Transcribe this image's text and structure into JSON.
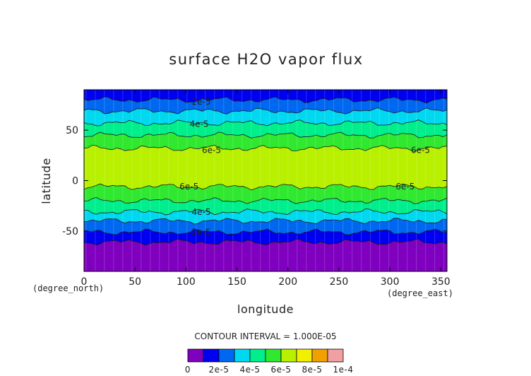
{
  "chart_data": {
    "type": "heatmap",
    "title": "surface H2O vapor flux",
    "xlabel": "longitude",
    "ylabel": "latitude",
    "x_unit": "(degree_east)",
    "y_unit": "(degree_north)",
    "xlim": [
      0,
      356
    ],
    "ylim": [
      -90,
      90
    ],
    "x_ticks": [
      0,
      50,
      100,
      150,
      200,
      250,
      300,
      350
    ],
    "y_ticks": [
      -50,
      0,
      50
    ],
    "contour_interval_text": "CONTOUR INTERVAL = 1.000E-05",
    "levels": [
      0,
      1e-05,
      2e-05,
      3e-05,
      4e-05,
      5e-05,
      6e-05,
      7e-05,
      8e-05,
      9e-05,
      0.0001
    ],
    "level_colors": [
      "#7f00bf",
      "#0000f0",
      "#0068f0",
      "#00d8f0",
      "#00ee8c",
      "#30e830",
      "#b8f000",
      "#f0f000",
      "#f0a000",
      "#f00000",
      "#f0a0a0"
    ],
    "colorbar_labels": [
      "0",
      "2e-5",
      "4e-5",
      "6e-5",
      "8e-5",
      "1e-4"
    ],
    "zonal_bands": [
      {
        "lat_from": -90,
        "lat_to": -61,
        "level_index": 0
      },
      {
        "lat_from": -61,
        "lat_to": -51,
        "level_index": 1
      },
      {
        "lat_from": -51,
        "lat_to": -40,
        "level_index": 2
      },
      {
        "lat_from": -40,
        "lat_to": -31,
        "level_index": 3
      },
      {
        "lat_from": -31,
        "lat_to": -20,
        "level_index": 4
      },
      {
        "lat_from": -20,
        "lat_to": -6,
        "level_index": 5
      },
      {
        "lat_from": -6,
        "lat_to": 32,
        "level_index": 6
      },
      {
        "lat_from": 32,
        "lat_to": 45,
        "level_index": 5
      },
      {
        "lat_from": 45,
        "lat_to": 57,
        "level_index": 4
      },
      {
        "lat_from": 57,
        "lat_to": 69,
        "level_index": 3
      },
      {
        "lat_from": 69,
        "lat_to": 80,
        "level_index": 2
      },
      {
        "lat_from": 80,
        "lat_to": 90,
        "level_index": 1
      }
    ],
    "contour_labels": [
      {
        "text": "2e-5",
        "lon": 115,
        "lat": 78
      },
      {
        "text": "4e-5",
        "lon": 113,
        "lat": 56
      },
      {
        "text": "6e-5",
        "lon": 125,
        "lat": 30
      },
      {
        "text": "6e-5",
        "lon": 330,
        "lat": 30
      },
      {
        "text": "6e-5",
        "lon": 103,
        "lat": -6
      },
      {
        "text": "6e-5",
        "lon": 315,
        "lat": -6
      },
      {
        "text": "4e-5",
        "lon": 115,
        "lat": -31
      },
      {
        "text": "2e-5",
        "lon": 115,
        "lat": -51
      }
    ]
  }
}
